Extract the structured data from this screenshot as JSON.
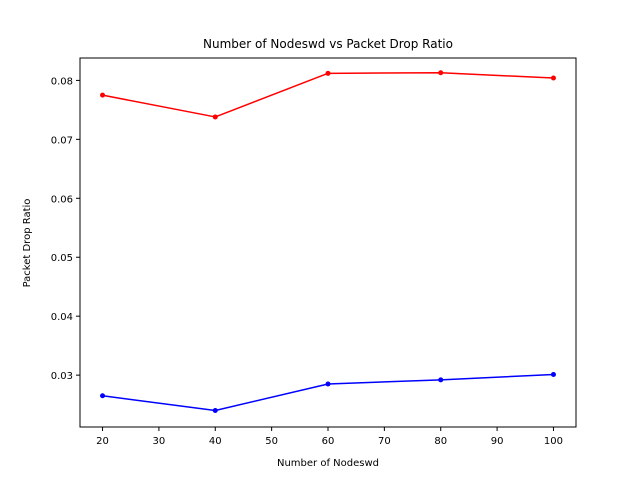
{
  "chart_data": {
    "type": "line",
    "title": "Number of Nodeswd vs Packet Drop Ratio",
    "xlabel": "Number of Nodeswd",
    "ylabel": "Packet Drop Ratio",
    "x": [
      20,
      40,
      60,
      80,
      100
    ],
    "xlim": [
      16,
      104
    ],
    "ylim": [
      0.0212,
      0.0838
    ],
    "xticks": [
      "20",
      "30",
      "40",
      "50",
      "60",
      "70",
      "80",
      "90",
      "100"
    ],
    "yticks": [
      "0.03",
      "0.04",
      "0.05",
      "0.06",
      "0.07",
      "0.08"
    ],
    "grid": false,
    "legend": "none",
    "series": [
      {
        "color": "#ff0000",
        "marker": "point",
        "values": [
          0.0775,
          0.0738,
          0.0812,
          0.0813,
          0.0804
        ]
      },
      {
        "color": "#0000ff",
        "marker": "point",
        "values": [
          0.0265,
          0.024,
          0.0285,
          0.0292,
          0.0301
        ]
      }
    ]
  }
}
